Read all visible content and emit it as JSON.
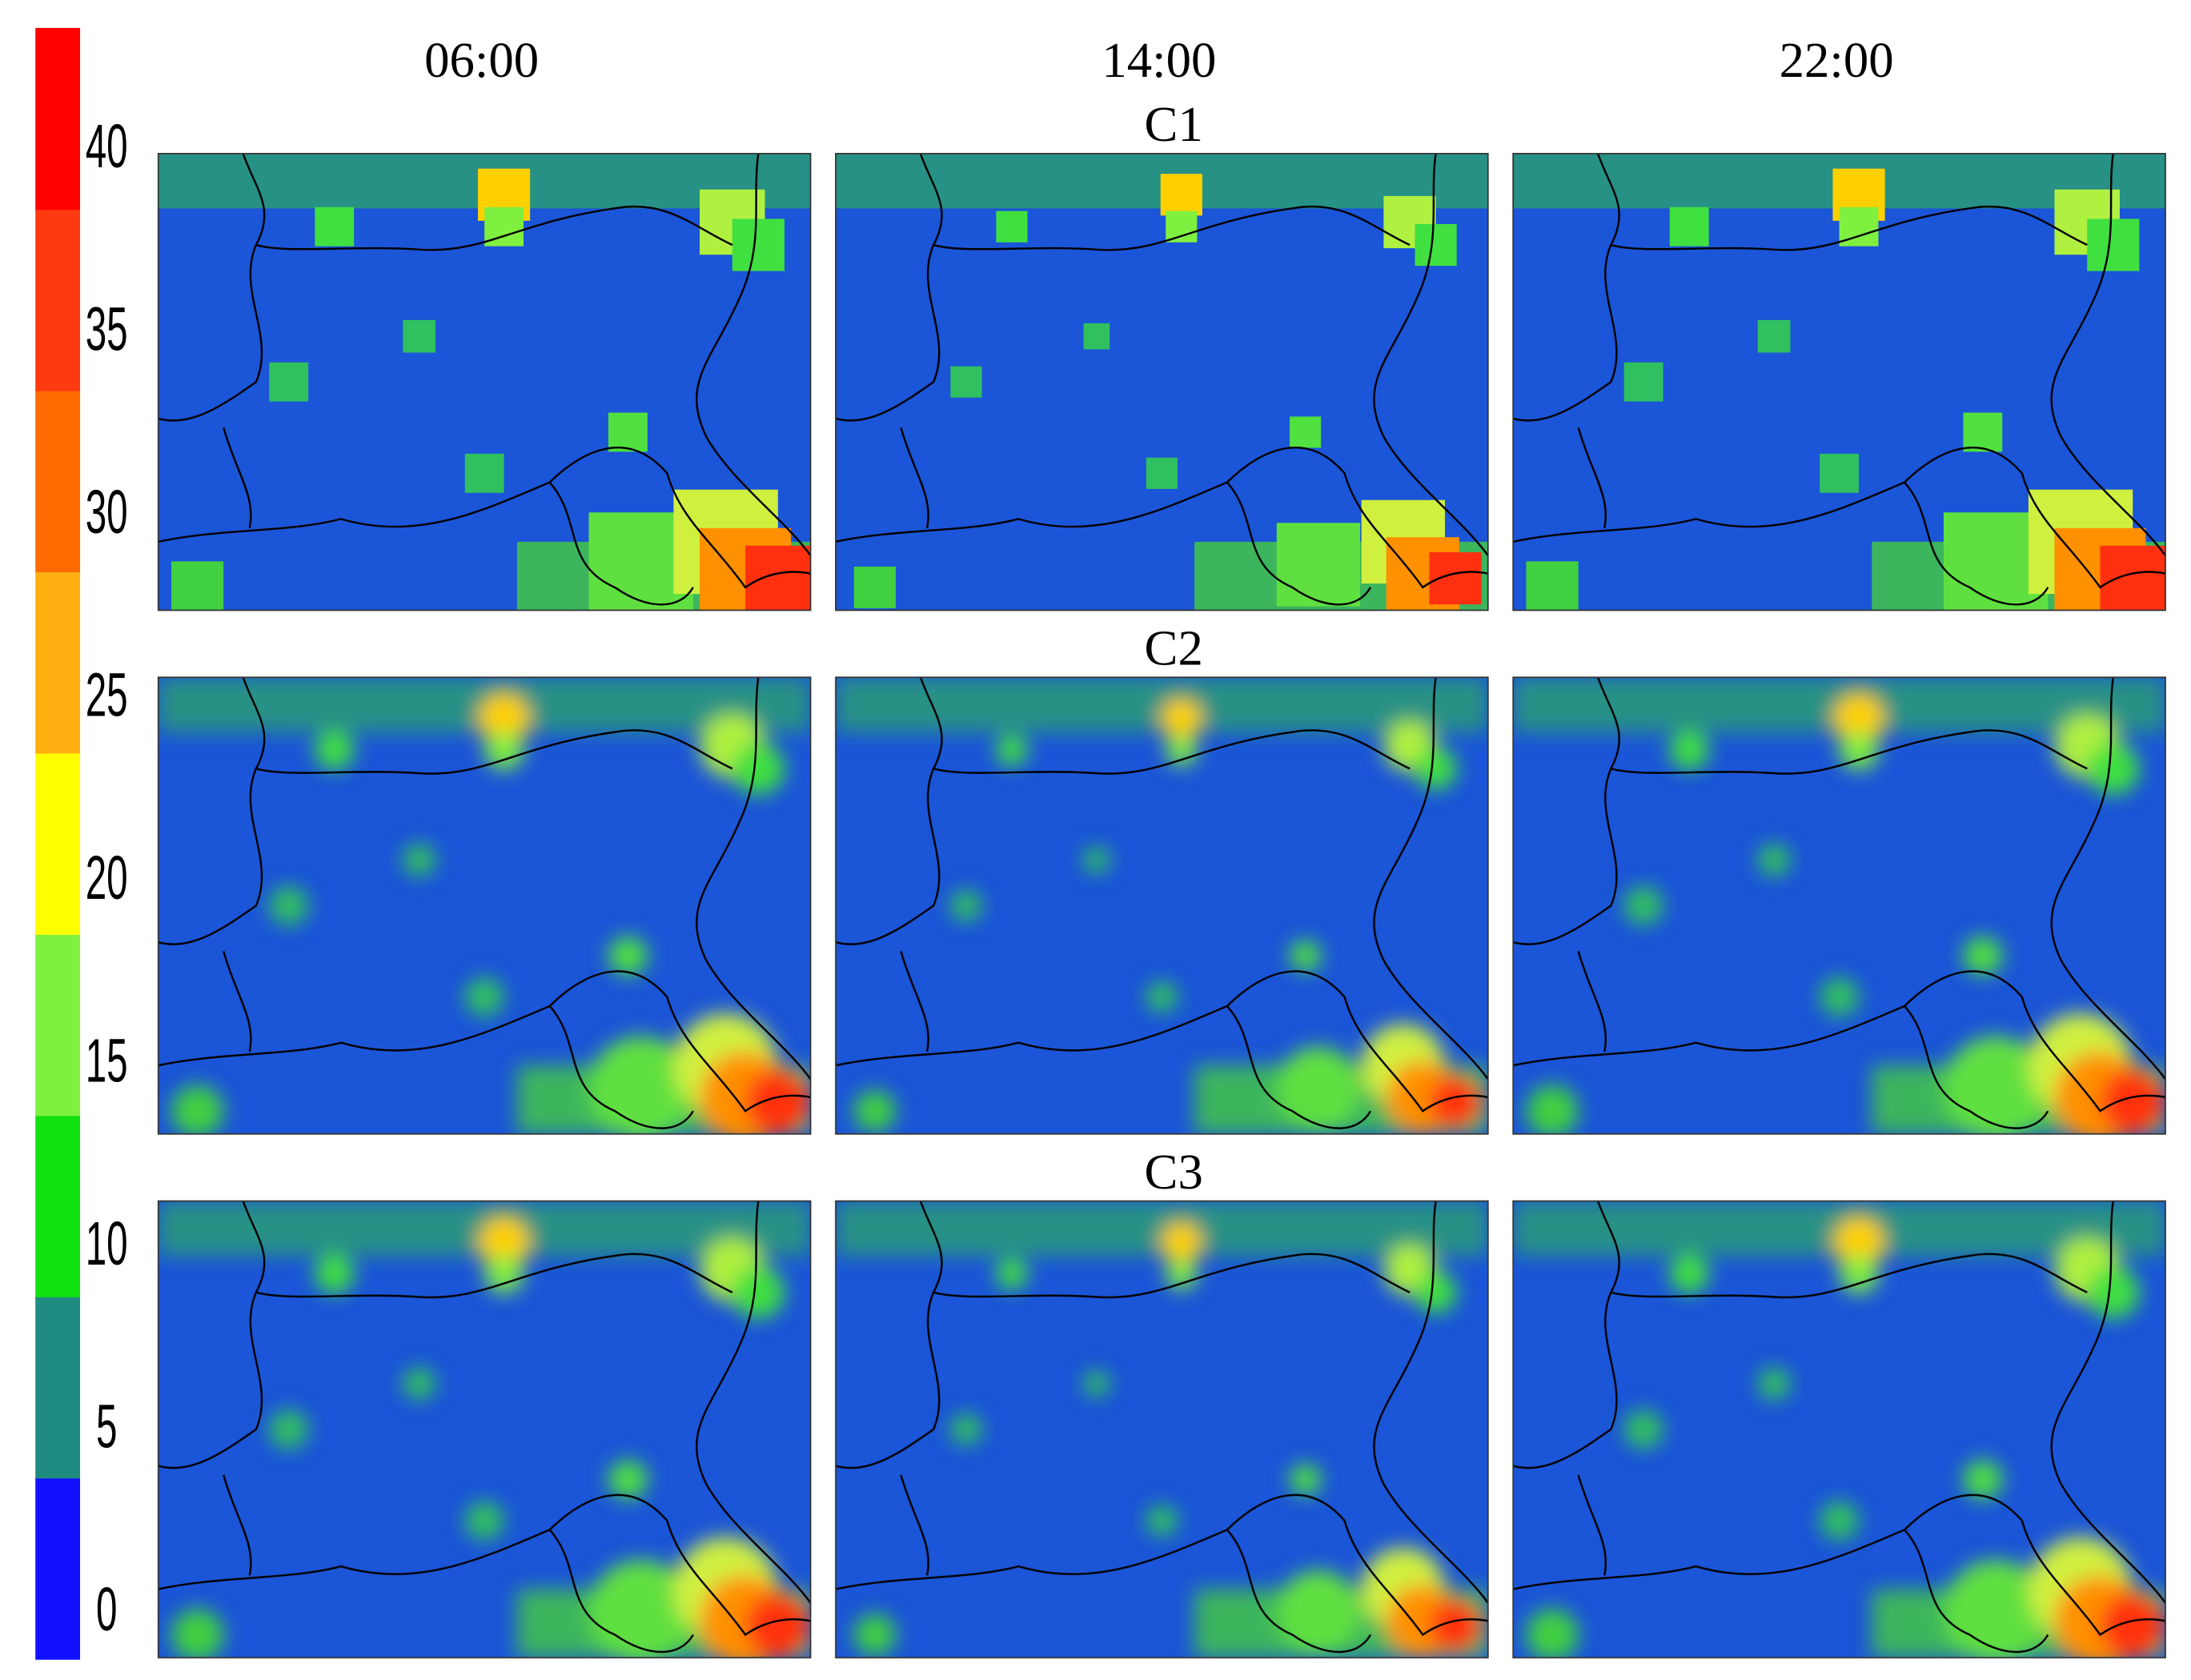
{
  "column_headers": [
    "06:00",
    "14:00",
    "22:00"
  ],
  "row_labels": [
    "C1",
    "C2",
    "C3"
  ],
  "colorbar": {
    "ticks": [
      0,
      5,
      10,
      15,
      20,
      25,
      30,
      35,
      40
    ],
    "lim": [
      -1.4,
      43.2
    ],
    "colors": [
      "#1010ff",
      "#1f8a80",
      "#10e010",
      "#80f040",
      "#ffff00",
      "#ffb010",
      "#ff6a00",
      "#ff3a10",
      "#ff0000"
    ]
  }
}
